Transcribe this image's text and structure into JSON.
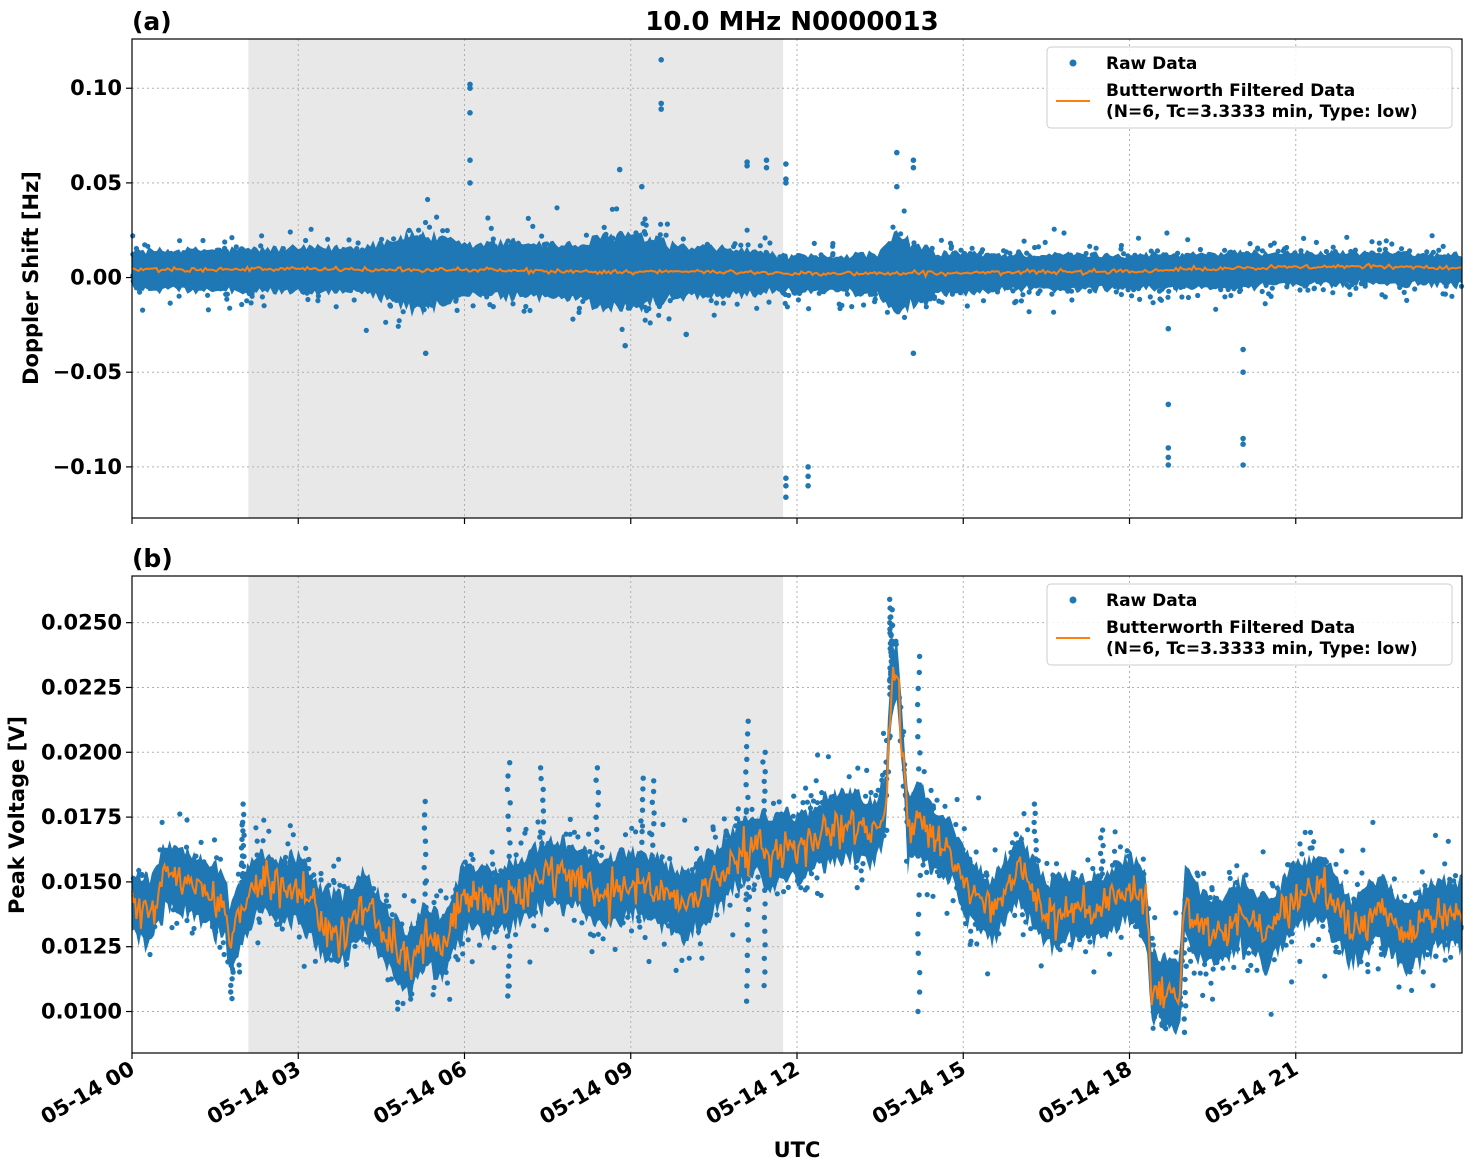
{
  "figure": {
    "title": "10.0 MHz N0000013",
    "xlabel": "UTC"
  },
  "colors": {
    "raw": "#1f77b4",
    "filtered": "#ff7f0e",
    "shade": "#e8e8e8",
    "grid": "#b0b0b0"
  },
  "chart_data": [
    {
      "type": "scatter",
      "panel_label": "(a)",
      "title": "10.0 MHz N0000013",
      "ylabel": "Doppler Shift [Hz]",
      "xlabel": "",
      "xlim": [
        "05-14 00:00",
        "05-15 00:00"
      ],
      "ylim": [
        -0.127,
        0.126
      ],
      "yticks": [
        0.1,
        0.05,
        0.0,
        -0.05,
        -0.1
      ],
      "ytick_labels": [
        "0.10",
        "0.05",
        "0.00",
        "−0.05",
        "−0.10"
      ],
      "xticks_hours": [
        0,
        3,
        6,
        9,
        12,
        15,
        18,
        21
      ],
      "grid": true,
      "legend_position": "top-right",
      "shaded_interval_hours": [
        2.1,
        11.75
      ],
      "series": [
        {
          "name": "Raw Data",
          "kind": "points",
          "band_x_hours": [
            0,
            2,
            4,
            5.2,
            6,
            7,
            8,
            8.8,
            9.4,
            10,
            11,
            11.8,
            12.5,
            13.5,
            13.8,
            14.5,
            16,
            18,
            20,
            22,
            24
          ],
          "band_y_center": [
            0.004,
            0.004,
            0.004,
            0.003,
            0.004,
            0.004,
            0.003,
            0.003,
            0.003,
            0.003,
            0.003,
            0.002,
            0.002,
            0.002,
            0.002,
            0.002,
            0.003,
            0.003,
            0.004,
            0.005,
            0.004
          ],
          "band_y_halfwidth": [
            0.011,
            0.012,
            0.013,
            0.022,
            0.014,
            0.016,
            0.015,
            0.022,
            0.018,
            0.014,
            0.013,
            0.01,
            0.01,
            0.012,
            0.022,
            0.012,
            0.01,
            0.01,
            0.01,
            0.009,
            0.009
          ],
          "outliers": [
            [
              6.1,
              0.102
            ],
            [
              6.1,
              0.1
            ],
            [
              6.1,
              0.087
            ],
            [
              6.1,
              0.062
            ],
            [
              6.1,
              0.05
            ],
            [
              9.55,
              0.115
            ],
            [
              9.55,
              0.092
            ],
            [
              9.55,
              0.089
            ],
            [
              8.8,
              0.057
            ],
            [
              9.2,
              0.048
            ],
            [
              11.1,
              0.061
            ],
            [
              11.1,
              0.059
            ],
            [
              11.45,
              0.062
            ],
            [
              11.45,
              0.058
            ],
            [
              11.8,
              0.06
            ],
            [
              11.8,
              0.052
            ],
            [
              11.8,
              0.05
            ],
            [
              13.8,
              0.066
            ],
            [
              13.8,
              0.048
            ],
            [
              14.1,
              0.062
            ],
            [
              14.1,
              0.058
            ],
            [
              5.3,
              -0.04
            ],
            [
              8.9,
              -0.036
            ],
            [
              10.0,
              -0.03
            ],
            [
              14.1,
              -0.04
            ],
            [
              11.8,
              -0.106
            ],
            [
              11.8,
              -0.11
            ],
            [
              11.8,
              -0.116
            ],
            [
              12.2,
              -0.1
            ],
            [
              12.2,
              -0.105
            ],
            [
              12.2,
              -0.11
            ],
            [
              18.7,
              -0.027
            ],
            [
              18.7,
              -0.067
            ],
            [
              18.7,
              -0.09
            ],
            [
              18.7,
              -0.095
            ],
            [
              18.7,
              -0.099
            ],
            [
              20.05,
              -0.038
            ],
            [
              20.05,
              -0.05
            ],
            [
              20.05,
              -0.085
            ],
            [
              20.05,
              -0.088
            ],
            [
              20.05,
              -0.099
            ]
          ]
        },
        {
          "name": "Butterworth Filtered Data\n(N=6, Tc=3.3333 min, Type: low)",
          "kind": "line",
          "x_hours": [
            0,
            1,
            2,
            3,
            4,
            5,
            6,
            7,
            8,
            9,
            10,
            11,
            12,
            13,
            14,
            15,
            16,
            17,
            18,
            19,
            20,
            21,
            22,
            23,
            24
          ],
          "y": [
            0.0045,
            0.0045,
            0.0043,
            0.0045,
            0.0042,
            0.004,
            0.0042,
            0.0035,
            0.0032,
            0.003,
            0.003,
            0.0028,
            0.0023,
            0.0022,
            0.0023,
            0.0024,
            0.0027,
            0.0032,
            0.0035,
            0.0043,
            0.0048,
            0.0055,
            0.0058,
            0.0055,
            0.0052
          ]
        }
      ],
      "legend": [
        "Raw Data",
        "Butterworth Filtered Data",
        "(N=6, Tc=3.3333 min, Type: low)"
      ]
    },
    {
      "type": "scatter",
      "panel_label": "(b)",
      "ylabel": "Peak Voltage [V]",
      "xlabel": "UTC",
      "xlim": [
        "05-14 00:00",
        "05-15 00:00"
      ],
      "ylim": [
        0.0084,
        0.0268
      ],
      "yticks": [
        0.025,
        0.0225,
        0.02,
        0.0175,
        0.015,
        0.0125,
        0.01
      ],
      "ytick_labels": [
        "0.0250",
        "0.0225",
        "0.0200",
        "0.0175",
        "0.0150",
        "0.0125",
        "0.0100"
      ],
      "xticks_hours": [
        0,
        3,
        6,
        9,
        12,
        15,
        18,
        21
      ],
      "xtick_labels": [
        "05-14 00",
        "05-14 03",
        "05-14 06",
        "05-14 09",
        "05-14 12",
        "05-14 15",
        "05-14 18",
        "05-14 21"
      ],
      "grid": true,
      "legend_position": "top-right",
      "shaded_interval_hours": [
        2.1,
        11.75
      ],
      "series": [
        {
          "name": "Raw Data",
          "kind": "points",
          "band_halfwidth": 0.0012
        },
        {
          "name": "Butterworth Filtered Data\n(N=6, Tc=3.3333 min, Type: low)",
          "kind": "line",
          "x_hours": [
            0,
            0.3,
            0.6,
            1.0,
            1.4,
            1.7,
            1.75,
            2.0,
            2.3,
            2.7,
            3.0,
            3.4,
            3.8,
            4.2,
            4.6,
            5.0,
            5.3,
            5.6,
            6.0,
            6.5,
            7.0,
            7.5,
            8.0,
            8.5,
            9.0,
            9.5,
            10.0,
            10.5,
            11.0,
            11.3,
            11.5,
            11.8,
            12.0,
            12.5,
            13.0,
            13.4,
            13.6,
            13.7,
            13.8,
            13.9,
            14.0,
            14.2,
            14.5,
            14.8,
            15.0,
            15.5,
            16.0,
            16.5,
            17.0,
            17.5,
            18.0,
            18.3,
            18.4,
            18.7,
            18.9,
            19.0,
            19.2,
            19.6,
            20.0,
            20.5,
            21.0,
            21.5,
            22.0,
            22.5,
            23.0,
            23.5,
            24.0
          ],
          "y": [
            0.0142,
            0.0138,
            0.0152,
            0.015,
            0.0145,
            0.014,
            0.0128,
            0.014,
            0.015,
            0.0146,
            0.0148,
            0.0135,
            0.0132,
            0.0142,
            0.0128,
            0.0118,
            0.013,
            0.0124,
            0.0145,
            0.0142,
            0.0146,
            0.0154,
            0.0152,
            0.0145,
            0.015,
            0.0147,
            0.014,
            0.015,
            0.0162,
            0.0165,
            0.016,
            0.0165,
            0.0162,
            0.017,
            0.0172,
            0.0168,
            0.018,
            0.0225,
            0.0232,
            0.0205,
            0.017,
            0.0175,
            0.0165,
            0.0162,
            0.015,
            0.0138,
            0.0155,
            0.0138,
            0.014,
            0.014,
            0.0148,
            0.014,
            0.011,
            0.0108,
            0.0105,
            0.0143,
            0.0135,
            0.013,
            0.0138,
            0.013,
            0.0145,
            0.0148,
            0.013,
            0.014,
            0.0128,
            0.0138,
            0.0138
          ]
        }
      ],
      "outlier_spikes": [
        [
          1.8,
          0.0105
        ],
        [
          2.0,
          0.0173
        ],
        [
          2.0,
          0.018
        ],
        [
          5.3,
          0.0181
        ],
        [
          6.8,
          0.0196
        ],
        [
          6.8,
          0.0106
        ],
        [
          7.4,
          0.0194
        ],
        [
          8.4,
          0.0194
        ],
        [
          9.2,
          0.019
        ],
        [
          9.4,
          0.0189
        ],
        [
          11.1,
          0.0212
        ],
        [
          11.1,
          0.0104
        ],
        [
          11.4,
          0.02
        ],
        [
          11.4,
          0.011
        ],
        [
          13.7,
          0.0259
        ],
        [
          13.7,
          0.0255
        ],
        [
          13.7,
          0.025
        ],
        [
          14.2,
          0.0237
        ],
        [
          14.2,
          0.01
        ],
        [
          16.3,
          0.018
        ],
        [
          17.5,
          0.017
        ],
        [
          19.0,
          0.0092
        ]
      ],
      "legend": [
        "Raw Data",
        "Butterworth Filtered Data",
        "(N=6, Tc=3.3333 min, Type: low)"
      ]
    }
  ]
}
